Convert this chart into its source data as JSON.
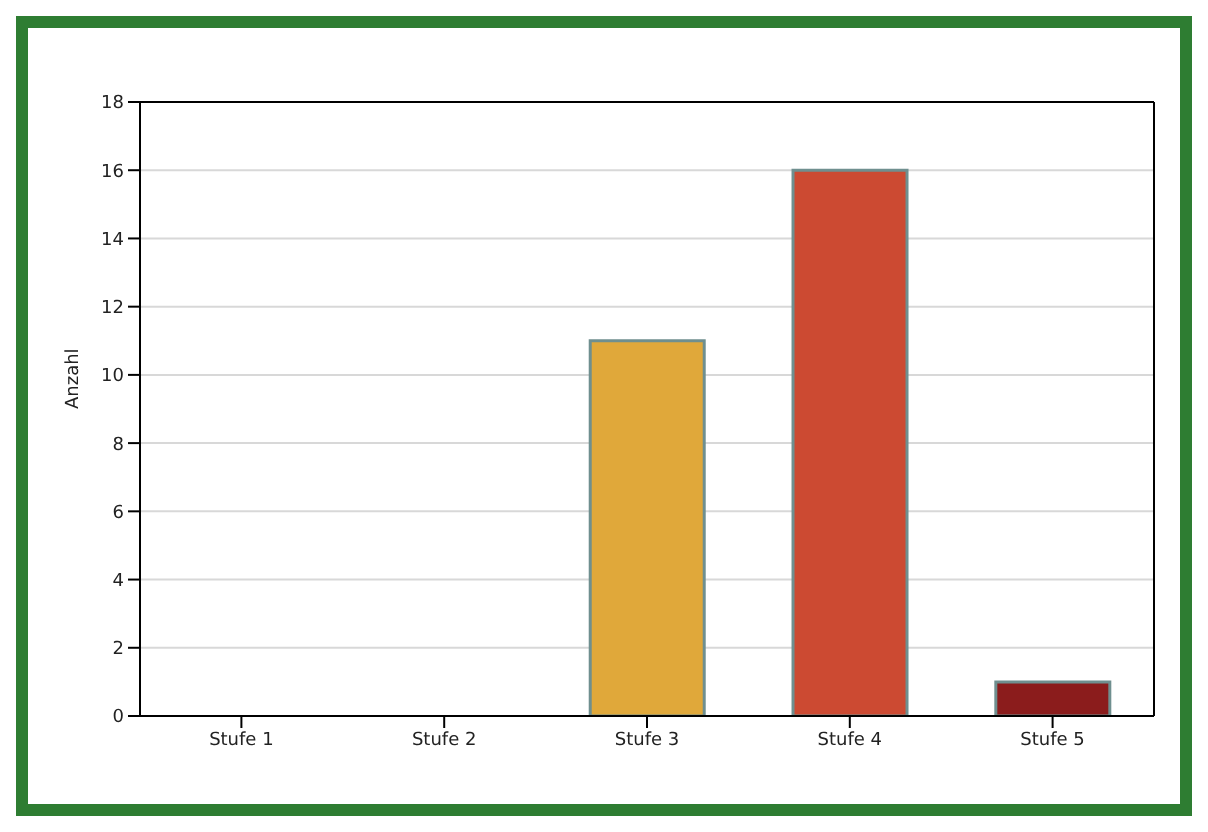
{
  "chart_data": {
    "type": "bar",
    "ylabel": "Anzahl",
    "categories": [
      "Stufe 1",
      "Stufe 2",
      "Stufe 3",
      "Stufe 4",
      "Stufe 5"
    ],
    "values": [
      0,
      0,
      11,
      16,
      1
    ],
    "colors": [
      "#e0a83a",
      "#e0a83a",
      "#e0a83a",
      "#cc4a32",
      "#8b1c1c"
    ],
    "ylim": [
      0,
      18
    ],
    "yticks": [
      0,
      2,
      4,
      6,
      8,
      10,
      12,
      14,
      16,
      18
    ],
    "grid": "y"
  }
}
